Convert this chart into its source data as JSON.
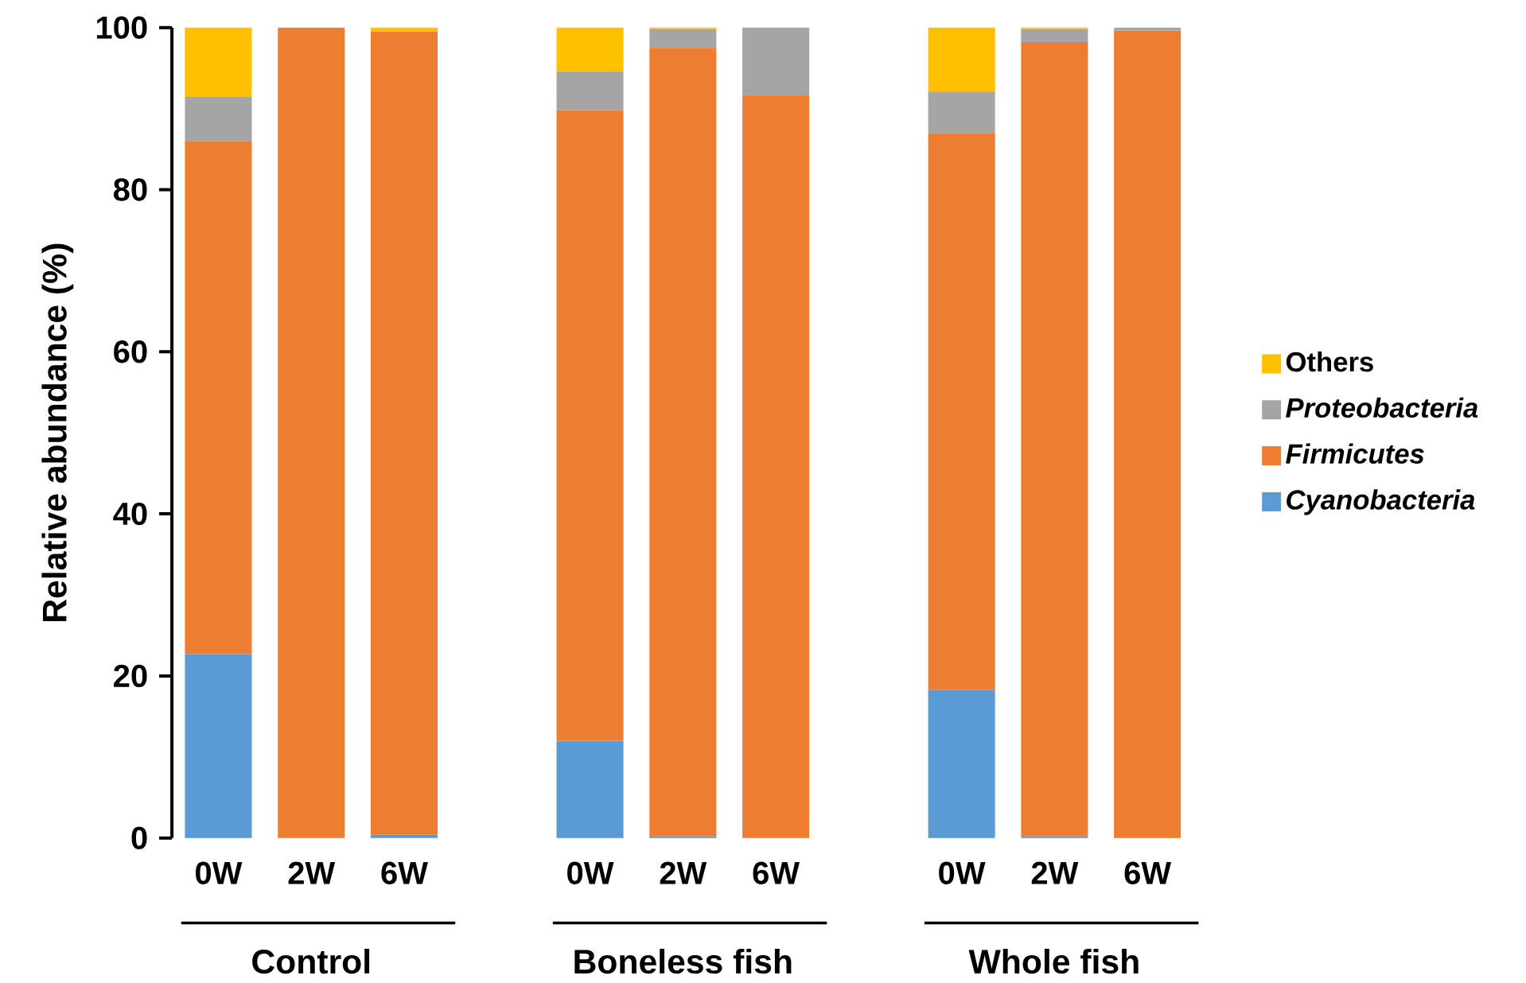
{
  "chart_data": {
    "type": "bar",
    "stacked": true,
    "ylabel": "Relative abundance (%)",
    "categories": [
      "0W",
      "2W",
      "6W",
      null,
      "0W",
      "2W",
      "6W",
      null,
      "0W",
      "2W",
      "6W"
    ],
    "series": [
      {
        "name": "*Cyanobacteria*",
        "color": "#5b9bd5",
        "values": [
          22.7,
          0,
          0.4,
          null,
          12.0,
          0.2,
          0,
          null,
          18.3,
          0.2,
          0
        ]
      },
      {
        "name": "*Firmicutes*",
        "color": "#ed7d31",
        "values": [
          63.3,
          100,
          99.1,
          null,
          77.8,
          97.3,
          91.7,
          null,
          68.7,
          98.0,
          99.6
        ]
      },
      {
        "name": "*Proteobacteria*",
        "color": "#a5a5a5",
        "values": [
          5.5,
          0,
          0,
          null,
          4.8,
          2.3,
          8.3,
          null,
          5.1,
          1.6,
          0.4
        ]
      },
      {
        "name": "Others",
        "color": "#ffc000",
        "values": [
          8.5,
          0,
          0.5,
          null,
          5.4,
          0.2,
          0,
          null,
          7.9,
          0.2,
          0
        ]
      }
    ],
    "annotations": [
      "Control",
      "Boneless fish",
      "Whole fish"
    ],
    "ylim": [
      0,
      100
    ],
    "yticks": [
      0,
      20,
      40,
      60,
      80,
      100
    ],
    "grid": false,
    "legend": "right"
  }
}
